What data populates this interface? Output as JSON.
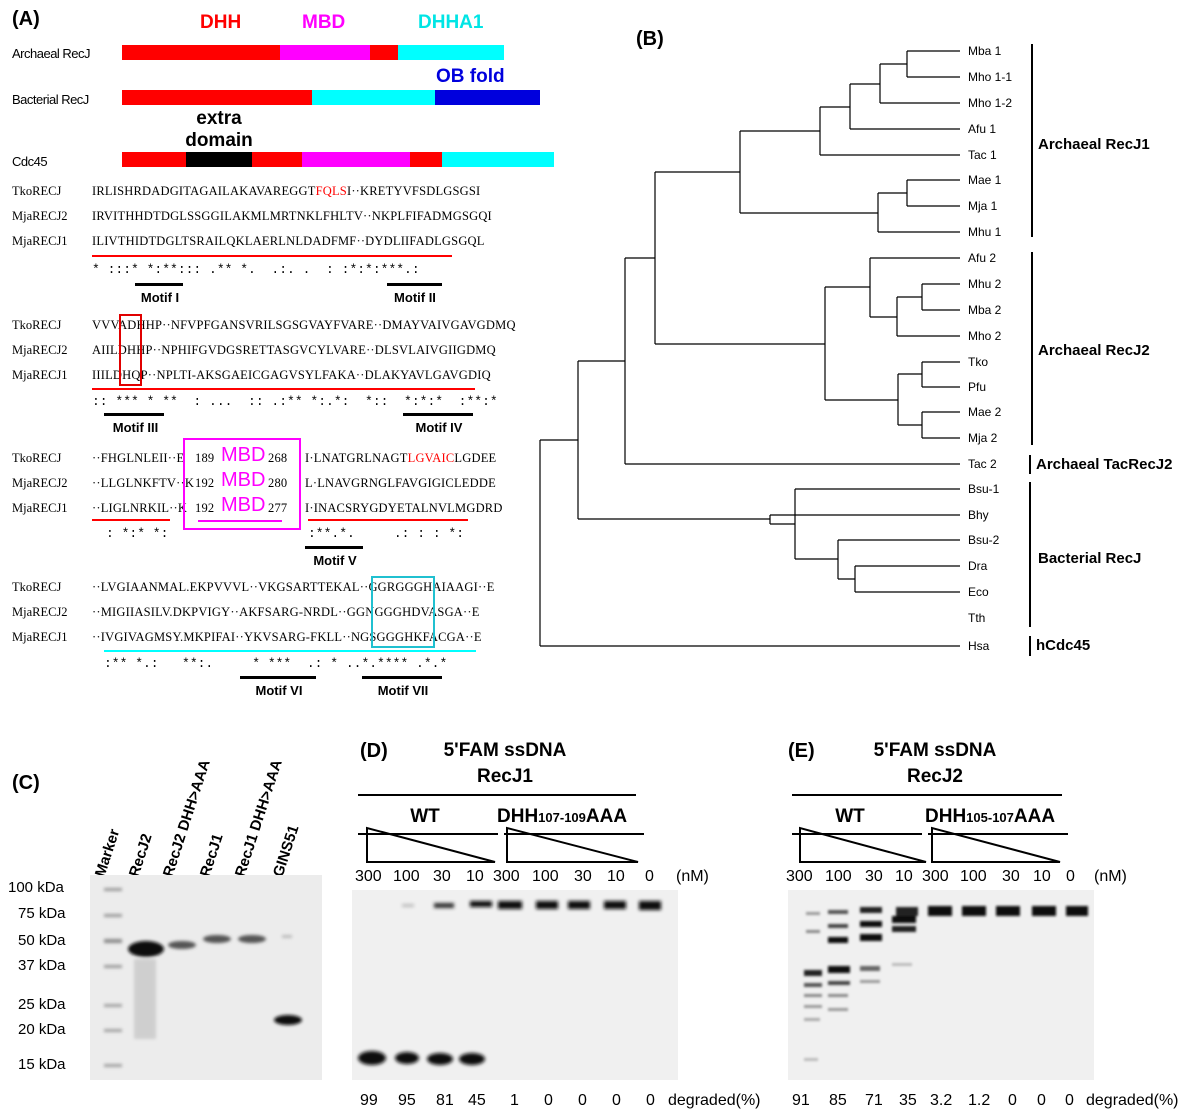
{
  "panelA": {
    "label": "(A)",
    "domains": {
      "dhh": "DHH",
      "mbd": "MBD",
      "dhha1": "DHHA1",
      "ob": "OB fold",
      "extra": "extra domain"
    },
    "proteins": [
      "Archaeal RecJ",
      "Bacterial RecJ",
      "Cdc45"
    ],
    "colors": {
      "dhh": "#ff0000",
      "mbd": "#ff00ff",
      "dhha1": "#00ffff",
      "ob": "#0000dd",
      "extra": "#000000"
    },
    "names": [
      "TkoRECJ",
      "MjaRECJ2",
      "MjaRECJ1"
    ],
    "block1": [
      "IRLISHRDADGITAGAILAKAVAREGGT",
      "FQLS",
      "I··KRETYVFSDLGSGSI",
      "IRVITHHDTDGLSSGGILAKMLMRTNKLFHLTV··NKPLFIFADMGSGQI",
      "ILIVTHIDTDGLTSRAILQKLAERLNLDADFMF··DYDLIIFADLGSGQL"
    ],
    "block2": [
      "VVVADHHP··NFVPFGANSVRILSGSGVAYFVARE··DMAYVAIVGAVGDMQ",
      "AIILDHHP··NPHIFGVDGSRETTASGVCYLVARE··DLSVLAIVGIIGDMQ",
      "IIILDHQP··NPLTI-AKSGAEICGAGVSYLFAKA··DLAKYAVLGAVGDIQ"
    ],
    "block3a": [
      "··FHGLNLEII··E",
      "··LLGLNKFTV··K",
      "··LIGLNRKIL··K"
    ],
    "mbdNums": [
      [
        "189",
        "268"
      ],
      [
        "192",
        "280"
      ],
      [
        "192",
        "277"
      ]
    ],
    "mbdEnds": [
      "I",
      "L",
      "I"
    ],
    "mbdText": "MBD",
    "block3b": [
      "·LNATGRLNAGT",
      "LGVAIC",
      "LGDEE",
      "·LNAVGRNGLFAVGIGICLEDDE",
      "·INACSRYGDYETALNVLMGDRD"
    ],
    "block4": [
      "··LVGIAANMAL.EKPVVVL··VKGSARTTEKAL··GGRGGGHAIAAGI··E",
      "··MIGIIASILV.DKPVIGY··AKFSARG-NRDL··GGNGGGHDVASGA··E",
      "··IVGIVAGMSY.MKPIFAI··YKVSARG-FKLL··NGSGGGHKFACGA··E"
    ],
    "cons1": "* :::* *:**::: .** *.  .:. .  : :*:*:***.:",
    "cons2": ":: *** * **  : ...  :: .:** *:.*:  *::  *:*:*  :**:*",
    "cons3a": ": *:* *:",
    "cons3b": ":**.*.     .: : : *:",
    "cons4": ":** *.:   **:.     * ***  .: * ..*.**** .*.*",
    "motifs": [
      "Motif I",
      "Motif II",
      "Motif III",
      "Motif IV",
      "Motif V",
      "Motif VI",
      "Motif VII"
    ]
  },
  "panelB": {
    "label": "(B)",
    "leaves": [
      "Mba 1",
      "Mho 1-1",
      "Mho 1-2",
      "Afu 1",
      "Tac 1",
      "Mae 1",
      "Mja 1",
      "Mhu 1",
      "Afu 2",
      "Mhu 2",
      "Mba 2",
      "Mho 2",
      "Tko",
      "Pfu",
      "Mae 2",
      "Mja 2",
      "Tac 2",
      "Bsu-1",
      "Bhy",
      "Bsu-2",
      "Dra",
      "Eco",
      "Tth",
      "Hsa"
    ],
    "groups": [
      "Archaeal RecJ1",
      "Archaeal RecJ2",
      "Archaeal TacRecJ2",
      "Bacterial RecJ",
      "hCdc45"
    ]
  },
  "panelC": {
    "label": "(C)",
    "lanes": [
      "Marker",
      "RecJ2",
      "RecJ2 DHH>AAA",
      "RecJ1",
      "RecJ1 DHH>AAA",
      "GINS51"
    ],
    "markers": [
      "100 kDa",
      "75 kDa",
      "50 kDa",
      "37 kDa",
      "25 kDa",
      "20 kDa",
      "15 kDa"
    ]
  },
  "panelD": {
    "label": "(D)",
    "substrate": "5'FAM ssDNA",
    "enzyme": "RecJ1",
    "wt": "WT",
    "mutant_pre": "DHH",
    "mutant_sub": "107-109",
    "mutant_post": "AAA",
    "conc": [
      "300",
      "100",
      "30",
      "10",
      "300",
      "100",
      "30",
      "10",
      "0"
    ],
    "unit": "(nM)",
    "degraded": [
      "99",
      "95",
      "81",
      "45",
      "1",
      "0",
      "0",
      "0",
      "0"
    ],
    "degLabel": "degraded(%)"
  },
  "panelE": {
    "label": "(E)",
    "substrate": "5'FAM ssDNA",
    "enzyme": "RecJ2",
    "wt": "WT",
    "mutant_pre": "DHH",
    "mutant_sub": "105-107",
    "mutant_post": "AAA",
    "conc": [
      "300",
      "100",
      "30",
      "10",
      "300",
      "100",
      "30",
      "10",
      "0"
    ],
    "unit": "(nM)",
    "degraded": [
      "91",
      "85",
      "71",
      "35",
      "3.2",
      "1.2",
      "0",
      "0",
      "0"
    ],
    "degLabel": "degraded(%)"
  }
}
